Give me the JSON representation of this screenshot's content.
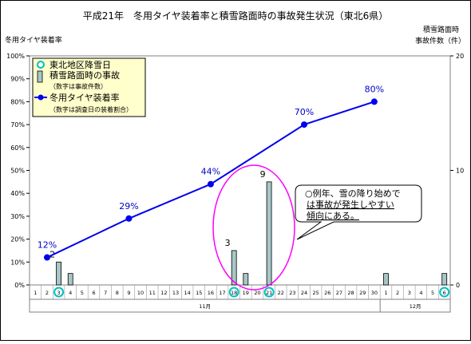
{
  "chart_data": {
    "type": "line",
    "title": "平成21年　冬用タイヤ装着率と積雪路面時の事故発生状況（東北6県）",
    "ylabel_left": "冬用タイヤ装着率",
    "ylabel_right_line1": "積雪路面時",
    "ylabel_right_line2": "事故件数（件）",
    "left_axis": {
      "min": 0,
      "max": 100,
      "ticks": [
        "0%",
        "10%",
        "20%",
        "30%",
        "40%",
        "50%",
        "60%",
        "70%",
        "80%",
        "90%",
        "100%"
      ]
    },
    "right_axis": {
      "min": 0,
      "max": 20,
      "ticks": [
        "0",
        "10",
        "20"
      ]
    },
    "day_labels": [
      "1",
      "2",
      "3",
      "4",
      "5",
      "6",
      "7",
      "8",
      "9",
      "10",
      "11",
      "12",
      "13",
      "14",
      "15",
      "16",
      "17",
      "18",
      "19",
      "20",
      "21",
      "22",
      "23",
      "24",
      "25",
      "26",
      "27",
      "28",
      "29",
      "30",
      "1",
      "2",
      "3",
      "4",
      "5",
      "6"
    ],
    "month_labels": [
      "11月",
      "12月"
    ],
    "highlighted_days_index": [
      2,
      17,
      20,
      35
    ],
    "legend": {
      "snow": "東北地区降雪日",
      "accidents": "積雪路面時の事故",
      "accidents_note": "（数字は事故件数）",
      "rate": "冬用タイヤ装着率",
      "rate_note": "（数字は調査日の装着割合）"
    },
    "series": [
      {
        "name": "冬用タイヤ装着率",
        "color": "#0000ee",
        "points": [
          {
            "x_index": 1,
            "value": 12,
            "label": "12%"
          },
          {
            "x_index": 8,
            "value": 29,
            "label": "29%"
          },
          {
            "x_index": 15,
            "value": 44,
            "label": "44%"
          },
          {
            "x_index": 23,
            "value": 70,
            "label": "70%"
          },
          {
            "x_index": 29,
            "value": 80,
            "label": "80%"
          }
        ]
      },
      {
        "name": "積雪路面時の事故",
        "color": "#a8c6c6",
        "bars": [
          {
            "x_index": 2,
            "value": 2,
            "label": "2"
          },
          {
            "x_index": 3,
            "value": 1,
            "label": ""
          },
          {
            "x_index": 17,
            "value": 3,
            "label": "3"
          },
          {
            "x_index": 18,
            "value": 1,
            "label": ""
          },
          {
            "x_index": 20,
            "value": 9,
            "label": "9"
          },
          {
            "x_index": 30,
            "value": 1,
            "label": ""
          },
          {
            "x_index": 35,
            "value": 1,
            "label": ""
          }
        ]
      }
    ],
    "callout": {
      "line1": "○例年、雪の降り始めで",
      "line2": "は事故が発生しやすい",
      "line3": "傾向にある。"
    }
  }
}
